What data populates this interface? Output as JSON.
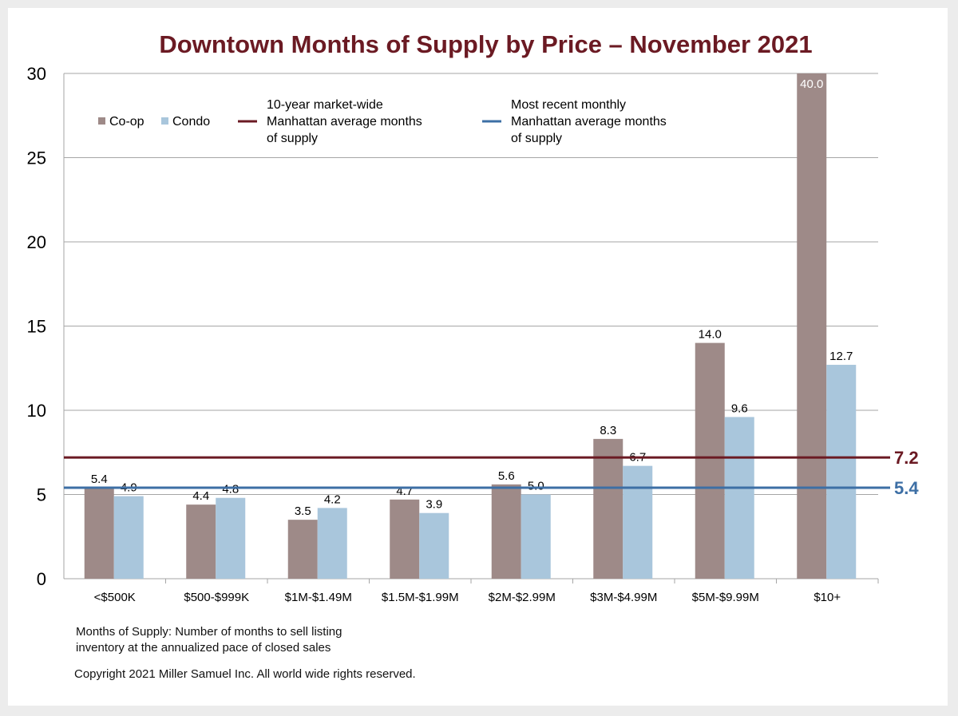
{
  "chart_data": {
    "type": "bar",
    "title": "Downtown Months of Supply by Price – November 2021",
    "xlabel": "",
    "ylabel": "",
    "ylim": [
      0,
      30
    ],
    "yticks": [
      0,
      5,
      10,
      15,
      20,
      25,
      30
    ],
    "grid": true,
    "legend_position": "top",
    "categories": [
      "<$500K",
      "$500-$999K",
      "$1M-$1.49M",
      "$1.5M-$1.99M",
      "$2M-$2.99M",
      "$3M-$4.99M",
      "$5M-$9.99M",
      "$10+"
    ],
    "series": [
      {
        "name": "Co-op",
        "color": "#9e8a88",
        "values": [
          5.4,
          4.4,
          3.5,
          4.7,
          5.6,
          8.3,
          14.0,
          40.0
        ],
        "labels": [
          "5.4",
          "4.4",
          "3.5",
          "4.7",
          "5.6",
          "8.3",
          "14.0",
          "40.0"
        ]
      },
      {
        "name": "Condo",
        "color": "#a9c6dc",
        "values": [
          4.9,
          4.8,
          4.2,
          3.9,
          5.0,
          6.7,
          9.6,
          12.7
        ],
        "labels": [
          "4.9",
          "4.8",
          "4.2",
          "3.9",
          "5.0",
          "6.7",
          "9.6",
          "12.7"
        ]
      }
    ],
    "reference_lines": [
      {
        "name": "10-year market-wide Manhattan average months of supply",
        "legend_lines": [
          "10-year market-wide",
          "Manhattan average months",
          "of supply"
        ],
        "value": 7.2,
        "label": "7.2",
        "color": "#6b1a23"
      },
      {
        "name": "Most recent monthly Manhattan average months of supply",
        "legend_lines": [
          "Most recent monthly",
          "Manhattan average months",
          "of supply"
        ],
        "value": 5.4,
        "label": "5.4",
        "color": "#3d6fa5"
      }
    ]
  },
  "footnote_lines": [
    "Months of Supply: Number of months to sell listing",
    "inventory at the annualized pace of closed sales"
  ],
  "copyright": "Copyright 2021 Miller Samuel Inc.  All world wide rights reserved."
}
